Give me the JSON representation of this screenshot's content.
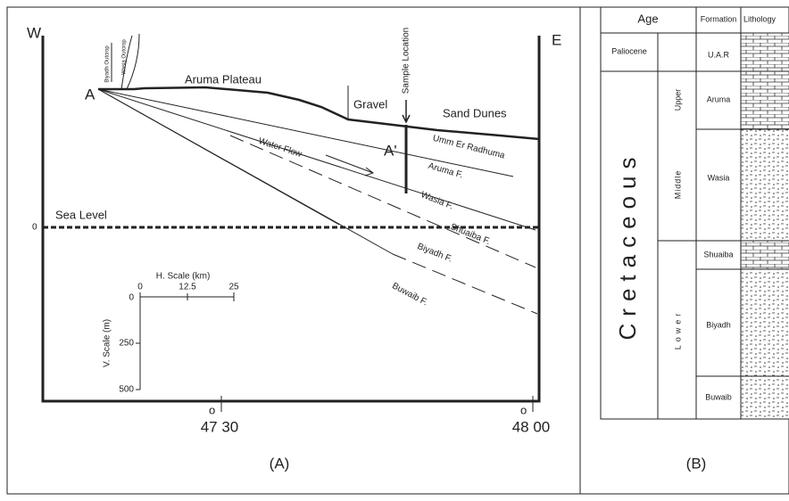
{
  "panel_a": {
    "label": "(A)",
    "west": "W",
    "east": "E",
    "point_a": "A",
    "point_a_prime": "A'",
    "surface": {
      "plateau": "Aruma Plateau",
      "gravel": "Gravel",
      "dunes": "Sand Dunes",
      "sample": "Sample Location",
      "biyadh_outcrop": "Biyadh Outcrop",
      "wasia_outcrop": "Wasia Outcrop"
    },
    "formations": {
      "umm": "Umm Er Radhuma",
      "aruma": "Aruma F.",
      "wasia": "Wasia F.",
      "shuaiba": "Shuaiba F.",
      "biyadh": "Biyadh F.",
      "buwaib": "Buwaib F."
    },
    "water_flow": "Water Flow",
    "sea_level": "Sea Level",
    "sea_level_zero": "0",
    "h_scale": {
      "title": "H. Scale (km)",
      "ticks": [
        "0",
        "12.5",
        "25"
      ]
    },
    "v_scale": {
      "title": "V. Scale (m)",
      "ticks": [
        "0",
        "250",
        "500"
      ]
    },
    "longitudes": [
      {
        "degree": "o",
        "label": "47 30"
      },
      {
        "degree": "o",
        "label": "48 00"
      }
    ]
  },
  "panel_b": {
    "label": "(B)",
    "header": {
      "age": "Age",
      "formation": "Formation",
      "lithology": "Lithology"
    },
    "era": "Cretaceous",
    "paliocene": "Paliocene",
    "sub_ages": {
      "upper": "Upper",
      "middle": "Middle",
      "lower": "Lower"
    },
    "formations": [
      "U.A.R",
      "Aruma",
      "Wasia",
      "Shuaiba",
      "Biyadh",
      "Buwaib"
    ]
  }
}
